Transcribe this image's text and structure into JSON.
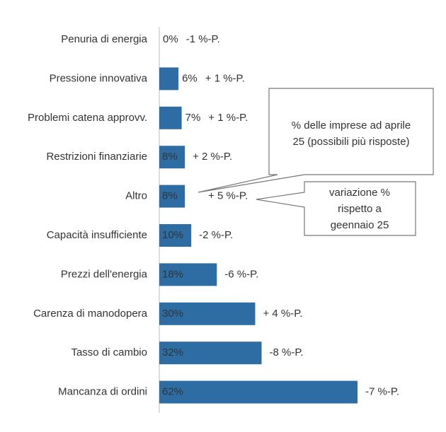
{
  "chart_data": {
    "type": "bar",
    "orientation": "horizontal",
    "color": "#2e6da4",
    "categories": [
      "Penuria di energia",
      "Pressione innovativa",
      "Problemi catena approvv.",
      "Restrizioni finanziarie",
      "Altro",
      "Capacità insufficiente",
      "Prezzi dell'energia",
      "Carenza di manodopera",
      "Tasso di cambio",
      "Mancanza di ordini"
    ],
    "values": [
      0,
      6,
      7,
      8,
      8,
      10,
      18,
      30,
      32,
      62
    ],
    "value_labels": [
      "0%",
      "6%",
      "7%",
      "8%",
      "8%",
      "10%",
      "18%",
      "30%",
      "32%",
      "62%"
    ],
    "change_labels": [
      "-1 %-P.",
      "+ 1 %-P.",
      "+ 1 %-P.",
      "+ 2 %-P.",
      "+ 5 %-P.",
      "-2 %-P.",
      "-6 %-P.",
      "+ 4 %-P.",
      "-8 %-P.",
      "-7 %-P."
    ],
    "change_colors": [
      "#b03a3a",
      "#4caa5c",
      "#b03a3a",
      "#111111",
      "#4caa5c",
      "#b03a3a",
      "#b03a3a",
      "#4caa5c",
      "#b03a3a",
      "#b03a3a"
    ],
    "annotations": [
      {
        "lines": [
          "% delle imprese ad aprile",
          "25 (possibili più risposte)"
        ]
      },
      {
        "lines": [
          "variazione %",
          "rispetto a",
          "geennaio 25"
        ]
      }
    ]
  }
}
